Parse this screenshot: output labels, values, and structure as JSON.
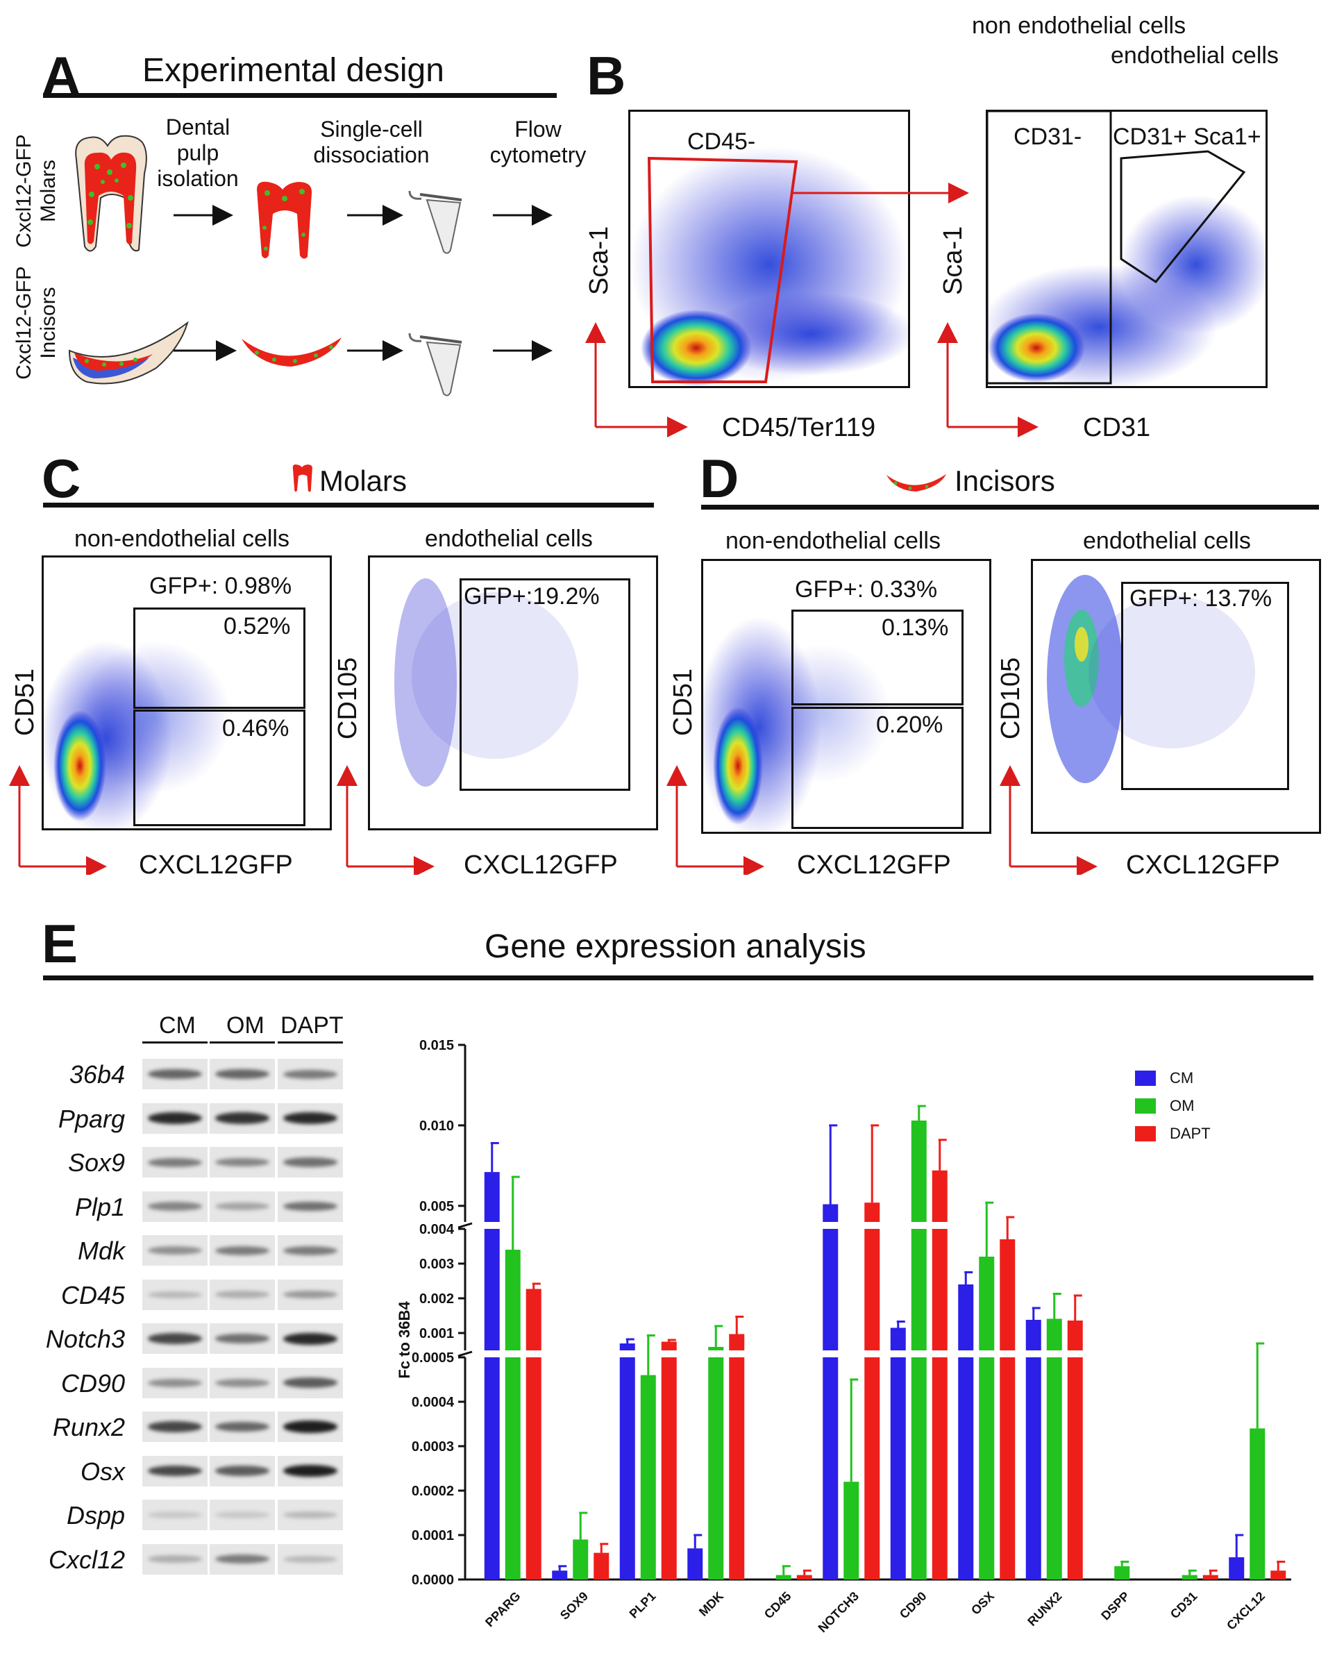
{
  "panelA": {
    "letter": "A",
    "title": "Experimental design",
    "steps": [
      "Dental pulp isolation",
      "Single-cell dissociation",
      "Flow cytometry"
    ],
    "rows": [
      {
        "label": "Cxcl12-GFP Molars"
      },
      {
        "label": "Cxcl12-GFP Incisors"
      }
    ]
  },
  "panelB": {
    "letter": "B",
    "plot1": {
      "gate": "CD45-",
      "xlabel": "CD45/Ter119",
      "ylabel": "Sca-1"
    },
    "plot2": {
      "header_left": "non endothelial cells",
      "header_right": "endothelial cells",
      "gate_left": "CD31-",
      "gate_right": "CD31+ Sca1+",
      "xlabel": "CD31",
      "ylabel": "Sca-1"
    }
  },
  "panelC": {
    "letter": "C",
    "title": "Molars",
    "nonendo": {
      "subtitle": "non-endothelial cells",
      "gfp": "GFP+: 0.98%",
      "upper": "0.52%",
      "lower": "0.46%",
      "xlabel": "CXCL12GFP",
      "ylabel": "CD51"
    },
    "endo": {
      "subtitle": "endothelial cells",
      "gfp": "GFP+:19.2%",
      "xlabel": "CXCL12GFP",
      "ylabel": "CD105"
    }
  },
  "panelD": {
    "letter": "D",
    "title": "Incisors",
    "nonendo": {
      "subtitle": "non-endothelial cells",
      "gfp": "GFP+: 0.33%",
      "upper": "0.13%",
      "lower": "0.20%",
      "xlabel": "CXCL12GFP",
      "ylabel": "CD51"
    },
    "endo": {
      "subtitle": "endothelial cells",
      "gfp": "GFP+: 13.7%",
      "xlabel": "CXCL12GFP",
      "ylabel": "CD105"
    }
  },
  "panelE": {
    "letter": "E",
    "title": "Gene expression analysis",
    "gel_columns": [
      "CM",
      "OM",
      "DAPT"
    ],
    "gel_genes": [
      "36b4",
      "Pparg",
      "Sox9",
      "Plp1",
      "Mdk",
      "CD45",
      "Notch3",
      "CD90",
      "Runx2",
      "Osx",
      "Dspp",
      "Cxcl12"
    ],
    "gel_intensity": [
      [
        0.6,
        0.6,
        0.5
      ],
      [
        0.9,
        0.85,
        0.9
      ],
      [
        0.5,
        0.45,
        0.55
      ],
      [
        0.45,
        0.3,
        0.55
      ],
      [
        0.4,
        0.5,
        0.5
      ],
      [
        0.2,
        0.25,
        0.35
      ],
      [
        0.75,
        0.55,
        0.9
      ],
      [
        0.4,
        0.4,
        0.65
      ],
      [
        0.75,
        0.6,
        0.95
      ],
      [
        0.75,
        0.65,
        0.95
      ],
      [
        0.12,
        0.12,
        0.2
      ],
      [
        0.25,
        0.5,
        0.2
      ]
    ]
  },
  "chart_data": {
    "type": "bar",
    "ylabel": "Fc to 36B4",
    "categories": [
      "PPARG",
      "SOX9",
      "PLP1",
      "MDK",
      "CD45",
      "NOTCH3",
      "CD90",
      "OSX",
      "RUNX2",
      "DSPP",
      "CD31",
      "CXCL12"
    ],
    "series": [
      {
        "name": "CM",
        "color": "#2b1fe8",
        "values": [
          0.0071,
          2e-05,
          0.0007,
          7e-05,
          0.0,
          0.0051,
          0.00115,
          0.0024,
          0.00138,
          0.0,
          0.0,
          5e-05
        ],
        "errors": [
          0.0018,
          1e-05,
          0.00012,
          3e-05,
          0.0,
          0.0049,
          0.00018,
          0.00035,
          0.00034,
          0.0,
          0.0,
          5e-05
        ]
      },
      {
        "name": "OM",
        "color": "#22c21f",
        "values": [
          0.0034,
          9e-05,
          0.00046,
          0.0006,
          1e-05,
          0.00022,
          0.0103,
          0.0032,
          0.00141,
          3e-05,
          1e-05,
          0.00034
        ],
        "errors": [
          0.0034,
          6e-05,
          0.00047,
          0.0006,
          2e-05,
          0.00023,
          0.0009,
          0.002,
          0.00072,
          1e-05,
          1e-05,
          0.00036
        ]
      },
      {
        "name": "DAPT",
        "color": "#ee1f1a",
        "values": [
          0.00227,
          6e-05,
          0.00075,
          0.00097,
          1e-05,
          0.0052,
          0.0072,
          0.0037,
          0.00136,
          0.0,
          1e-05,
          2e-05
        ],
        "errors": [
          0.00015,
          2e-05,
          5e-05,
          0.0005,
          1e-05,
          0.0048,
          0.0019,
          0.0006,
          0.00072,
          0.0,
          1e-05,
          2e-05
        ]
      }
    ],
    "segments": [
      {
        "ylim": [
          0,
          0.0005
        ],
        "ticks": [
          "0.0000",
          "0.0001",
          "0.0002",
          "0.0003",
          "0.0004",
          "0.0005"
        ],
        "tick_values": [
          0,
          0.0001,
          0.0002,
          0.0003,
          0.0004,
          0.0005
        ]
      },
      {
        "ylim": [
          0.0005,
          0.004
        ],
        "ticks": [
          "0.001",
          "0.002",
          "0.003",
          "0.004"
        ],
        "tick_values": [
          0.001,
          0.002,
          0.003,
          0.004
        ]
      },
      {
        "ylim": [
          0.004,
          0.015
        ],
        "ticks": [
          "0.005",
          "0.010",
          "0.015"
        ],
        "tick_values": [
          0.005,
          0.01,
          0.015
        ]
      }
    ],
    "legend": "top-right",
    "grid": false
  }
}
